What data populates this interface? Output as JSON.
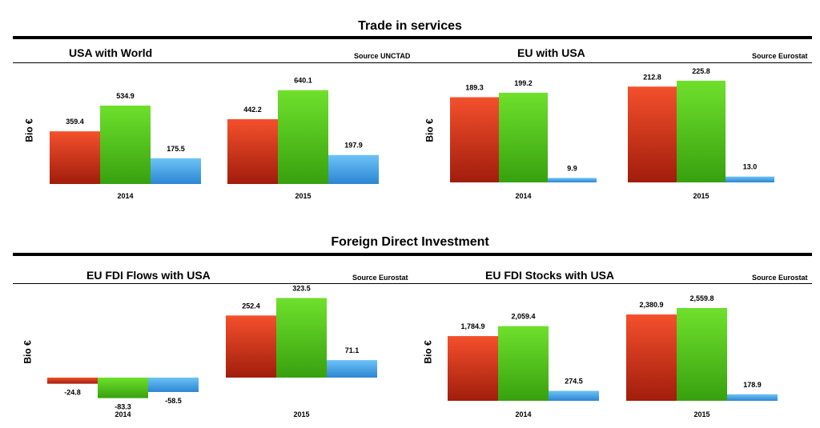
{
  "sections": [
    {
      "title": "Trade in services"
    },
    {
      "title": "Foreign Direct Investment"
    }
  ],
  "colors": {
    "red": [
      "#f4502c",
      "#a11d0c"
    ],
    "green": [
      "#6fe02c",
      "#37a10f"
    ],
    "blue": [
      "#6dc2f6",
      "#2c86d3"
    ]
  },
  "chart_data": [
    {
      "type": "bar",
      "title": "USA with World",
      "source": "Source UNCTAD",
      "ylabel": "Bio €",
      "categories": [
        "2014",
        "2015"
      ],
      "series": [
        {
          "color": "red",
          "values": [
            359.4,
            442.2
          ],
          "labels": [
            "359.4",
            "442.2"
          ]
        },
        {
          "color": "green",
          "values": [
            534.9,
            640.1
          ],
          "labels": [
            "534.9",
            "640.1"
          ]
        },
        {
          "color": "blue",
          "values": [
            175.5,
            197.9
          ],
          "labels": [
            "175.5",
            "197.9"
          ]
        }
      ]
    },
    {
      "type": "bar",
      "title": "EU with USA",
      "source": "Source Eurostat",
      "ylabel": "Bio €",
      "categories": [
        "2014",
        "2015"
      ],
      "series": [
        {
          "color": "red",
          "values": [
            189.3,
            212.8
          ],
          "labels": [
            "189.3",
            "212.8"
          ]
        },
        {
          "color": "green",
          "values": [
            199.2,
            225.8
          ],
          "labels": [
            "199.2",
            "225.8"
          ]
        },
        {
          "color": "blue",
          "values": [
            9.9,
            13.0
          ],
          "labels": [
            "9.9",
            "13.0"
          ]
        }
      ]
    },
    {
      "type": "bar",
      "title": "EU FDI Flows with USA",
      "source": "Source Eurostat",
      "ylabel": "Bio €",
      "categories": [
        "2014",
        "2015"
      ],
      "series": [
        {
          "color": "red",
          "values": [
            -24.8,
            252.4
          ],
          "labels": [
            "-24.8",
            "252.4"
          ]
        },
        {
          "color": "green",
          "values": [
            -83.3,
            323.5
          ],
          "labels": [
            "-83.3",
            "323.5"
          ]
        },
        {
          "color": "blue",
          "values": [
            -58.5,
            71.1
          ],
          "labels": [
            "-58.5",
            "71.1"
          ]
        }
      ]
    },
    {
      "type": "bar",
      "title": "EU FDI Stocks with USA",
      "source": "Source Eurostat",
      "ylabel": "Bio €",
      "categories": [
        "2014",
        "2015"
      ],
      "series": [
        {
          "color": "red",
          "values": [
            1784.9,
            2380.9
          ],
          "labels": [
            "1,784.9",
            "2,380.9"
          ]
        },
        {
          "color": "green",
          "values": [
            2059.4,
            2559.8
          ],
          "labels": [
            "2,059.4",
            "2,559.8"
          ]
        },
        {
          "color": "blue",
          "values": [
            274.5,
            178.9
          ],
          "labels": [
            "274.5",
            "178.9"
          ]
        }
      ]
    }
  ]
}
